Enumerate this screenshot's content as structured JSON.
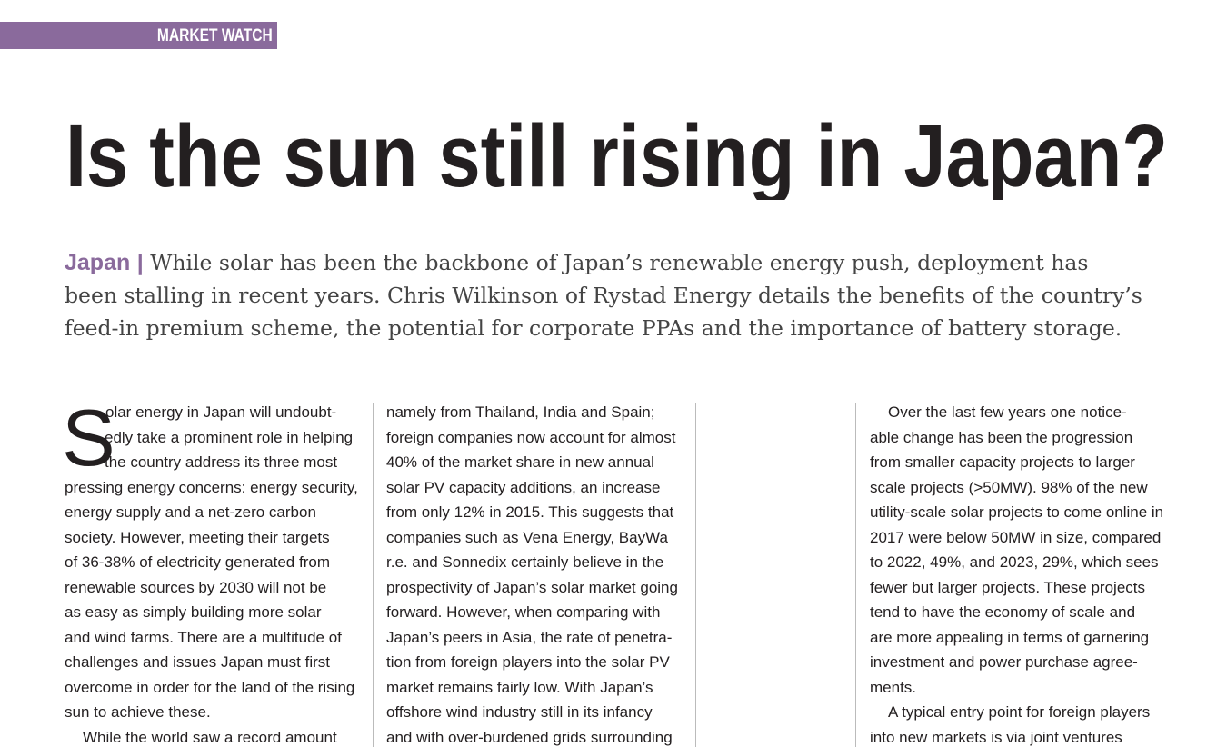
{
  "header": {
    "section": "MARKET WATCH",
    "title": "Is the sun still rising in Japan?"
  },
  "standfirst": {
    "tag": "Japan",
    "separator": "|",
    "lines": [
      "While solar has been the backbone of Japan’s renewable energy push, deployment has",
      "been stalling in recent years. Chris Wilkinson of Rystad Energy details the benefits of the country’s",
      "feed-in premium scheme, the potential for corporate PPAs and the importance of battery storage."
    ]
  },
  "body": {
    "drop_cap": "S",
    "columns": [
      {
        "paragraphs": [
          {
            "lines": [
              "olar energy in Japan will undoubt-",
              "edly take a prominent role in helping",
              "the country address its three most",
              "pressing energy concerns: energy security,",
              "energy supply and a net-zero carbon",
              "society. However, meeting their targets",
              "of 36-38% of electricity generated from",
              "renewable sources by 2030 will not be",
              "as easy as simply building more solar",
              "and wind farms. There are a multitude of",
              "challenges and issues Japan must first",
              "overcome in order for the land of the rising",
              "sun to achieve these."
            ]
          },
          {
            "lines": [
              "While the world saw a record amount"
            ]
          }
        ]
      },
      {
        "paragraphs": [
          {
            "lines": [
              "namely from Thailand, India and Spain;",
              "foreign companies now account for almost",
              "40% of the market share in new annual",
              "solar PV capacity additions, an increase",
              "from only 12% in 2015. This suggests that",
              "companies such as Vena Energy, BayWa",
              "r.e. and Sonnedix certainly believe in the",
              "prospectivity of Japan’s solar market going",
              "forward. However, when comparing with",
              "Japan’s peers in Asia, the rate of penetra-",
              "tion from foreign players into the solar PV",
              "market remains fairly low. With Japan’s",
              "offshore wind industry still in its infancy",
              "and with over-burdened grids surrounding"
            ]
          }
        ]
      },
      {
        "paragraphs": [
          {
            "lines": [
              "Over the last few years one notice-",
              "able change has been the progression",
              "from smaller capacity projects to larger",
              "scale projects (>50MW). 98% of the new",
              "utility-scale solar projects to come online in",
              "2017 were below 50MW in size, compared",
              "to 2022, 49%, and 2023, 29%, which sees",
              "fewer but larger projects. These projects",
              "tend to have the economy of scale and",
              "are more appealing in terms of garnering",
              "investment and power purchase agree-",
              "ments."
            ]
          },
          {
            "lines": [
              "A typical entry point for foreign players",
              "into new markets is via joint ventures"
            ]
          }
        ]
      }
    ]
  }
}
